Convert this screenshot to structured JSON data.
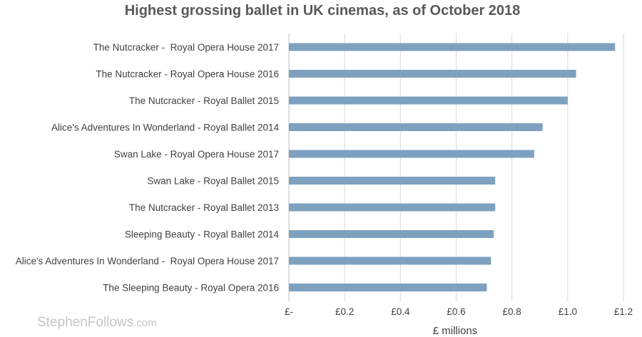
{
  "chart_data": {
    "type": "bar",
    "orientation": "horizontal",
    "title": "Highest grossing ballet in UK cinemas, as of October 2018",
    "xlabel": "£ millions",
    "ylabel": "",
    "xlim": [
      0,
      1.2
    ],
    "ticks": [
      0,
      0.2,
      0.4,
      0.6,
      0.8,
      1.0,
      1.2
    ],
    "tick_labels": [
      "£-",
      "£0.2",
      "£0.4",
      "£0.6",
      "£0.8",
      "£1.0",
      "£1.2"
    ],
    "grid": true,
    "legend": "none",
    "bar_color": "#7ea1bf",
    "categories": [
      "The Nutcracker -  Royal Opera House 2017",
      "The Nutcracker - Royal Opera House 2016",
      "The Nutcracker - Royal Ballet 2015",
      "Alice's Adventures In Wonderland - Royal Ballet 2014",
      "Swan Lake - Royal Opera House 2017",
      "Swan Lake - Royal Ballet 2015",
      "The Nutcracker - Royal Ballet 2013",
      "Sleeping Beauty - Royal Ballet 2014",
      "Alice's Adventures In Wonderland -  Royal Opera House 2017",
      "The Sleeping Beauty - Royal Opera 2016"
    ],
    "values": [
      1.17,
      1.03,
      1.0,
      0.91,
      0.88,
      0.74,
      0.74,
      0.735,
      0.725,
      0.71
    ]
  },
  "watermark": {
    "text_main": "StephenFollows",
    "text_suffix": ".com"
  }
}
